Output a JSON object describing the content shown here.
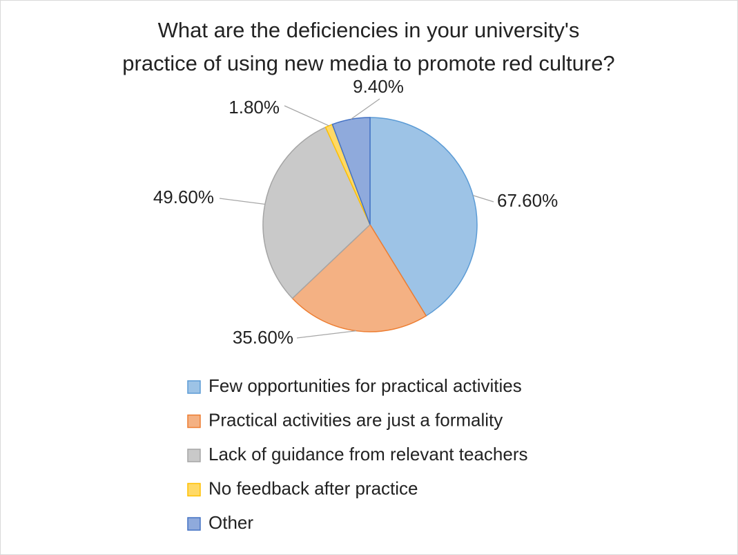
{
  "chart_data": {
    "type": "pie",
    "title": [
      "What are the deficiencies in your university's",
      "practice of using new media to promote red culture?"
    ],
    "categories": [
      "Few opportunities for practical activities",
      "Practical activities are just a formality",
      "Lack of guidance from relevant teachers",
      "No feedback after practice",
      "Other"
    ],
    "values": [
      67.6,
      35.6,
      49.6,
      1.8,
      9.4
    ],
    "value_labels": [
      "67.60%",
      "35.60%",
      "49.60%",
      "1.80%",
      "9.40%"
    ],
    "colors": [
      "#9dc3e6",
      "#f4b183",
      "#c9c9c9",
      "#ffd966",
      "#8faadc"
    ],
    "legend": "bottom"
  }
}
